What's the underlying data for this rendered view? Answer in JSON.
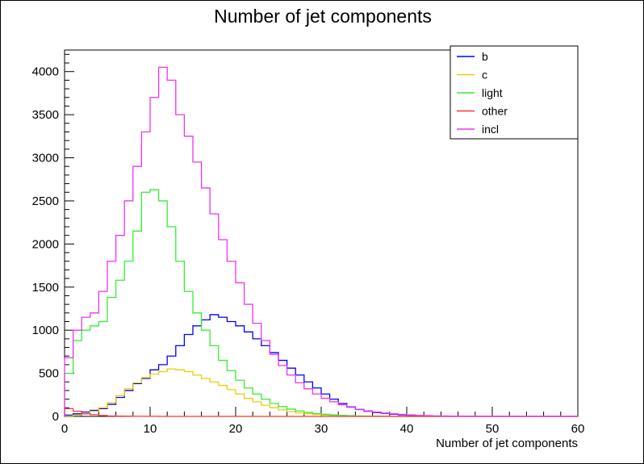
{
  "chart_data": {
    "type": "histogram",
    "title": "Number of jet components",
    "xlabel": "Number of jet components",
    "ylabel": "",
    "xlim": [
      0,
      60
    ],
    "ylim": [
      0,
      4250
    ],
    "bin_width": 1,
    "x_ticks": [
      0,
      10,
      20,
      30,
      40,
      50,
      60
    ],
    "y_ticks": [
      0,
      500,
      1000,
      1500,
      2000,
      2500,
      3000,
      3500,
      4000
    ],
    "legend_position": "top-right",
    "grid": false,
    "series": [
      {
        "name": "b",
        "color": "#0000ff",
        "values": [
          15,
          30,
          50,
          70,
          90,
          140,
          220,
          300,
          380,
          440,
          540,
          600,
          700,
          820,
          950,
          1050,
          1120,
          1180,
          1150,
          1100,
          1050,
          980,
          900,
          820,
          740,
          650,
          560,
          480,
          400,
          330,
          260,
          200,
          150,
          110,
          80,
          60,
          45,
          35,
          25,
          18,
          12,
          8,
          5,
          3,
          2,
          1,
          1,
          0,
          0,
          0,
          0,
          0,
          0,
          0,
          0,
          0,
          0,
          0,
          0,
          0
        ]
      },
      {
        "name": "c",
        "color": "#e8d000",
        "values": [
          5,
          15,
          30,
          60,
          100,
          160,
          240,
          320,
          390,
          450,
          490,
          520,
          550,
          540,
          520,
          480,
          440,
          400,
          360,
          310,
          260,
          210,
          170,
          130,
          100,
          75,
          55,
          40,
          30,
          22,
          15,
          10,
          7,
          5,
          3,
          2,
          1,
          1,
          0,
          0,
          0,
          0,
          0,
          0,
          0,
          0,
          0,
          0,
          0,
          0,
          0,
          0,
          0,
          0,
          0,
          0,
          0,
          0,
          0,
          0
        ]
      },
      {
        "name": "light",
        "color": "#33ee33",
        "values": [
          500,
          880,
          1000,
          1050,
          1100,
          1380,
          1580,
          1800,
          2150,
          2600,
          2630,
          2500,
          2200,
          1800,
          1450,
          1200,
          1000,
          820,
          650,
          530,
          420,
          330,
          260,
          200,
          150,
          115,
          85,
          62,
          45,
          33,
          24,
          17,
          12,
          8,
          5,
          3,
          2,
          1,
          1,
          0,
          0,
          0,
          0,
          0,
          0,
          0,
          0,
          0,
          0,
          0,
          0,
          0,
          0,
          0,
          0,
          0,
          0,
          0,
          0,
          0
        ]
      },
      {
        "name": "other",
        "color": "#ff3333",
        "values": [
          90,
          60,
          30,
          20,
          10,
          5,
          3,
          2,
          1,
          1,
          1,
          0,
          0,
          0,
          0,
          0,
          0,
          0,
          0,
          0,
          0,
          0,
          0,
          0,
          0,
          0,
          0,
          0,
          0,
          0,
          0,
          0,
          0,
          0,
          0,
          0,
          0,
          0,
          0,
          0,
          0,
          0,
          0,
          0,
          0,
          0,
          0,
          0,
          0,
          0,
          0,
          0,
          0,
          0,
          0,
          0,
          0,
          0,
          0,
          0
        ]
      },
      {
        "name": "incl",
        "color": "#ee33ee",
        "values": [
          680,
          1000,
          1150,
          1200,
          1450,
          1800,
          2100,
          2500,
          2900,
          3300,
          3700,
          4050,
          3900,
          3500,
          3250,
          2950,
          2650,
          2350,
          2050,
          1800,
          1550,
          1300,
          1080,
          880,
          720,
          590,
          480,
          390,
          320,
          260,
          210,
          170,
          135,
          105,
          82,
          64,
          50,
          39,
          30,
          23,
          17,
          12,
          9,
          6,
          4,
          3,
          2,
          1,
          1,
          1,
          0,
          0,
          0,
          0,
          0,
          0,
          0,
          0,
          0,
          0
        ]
      }
    ]
  }
}
